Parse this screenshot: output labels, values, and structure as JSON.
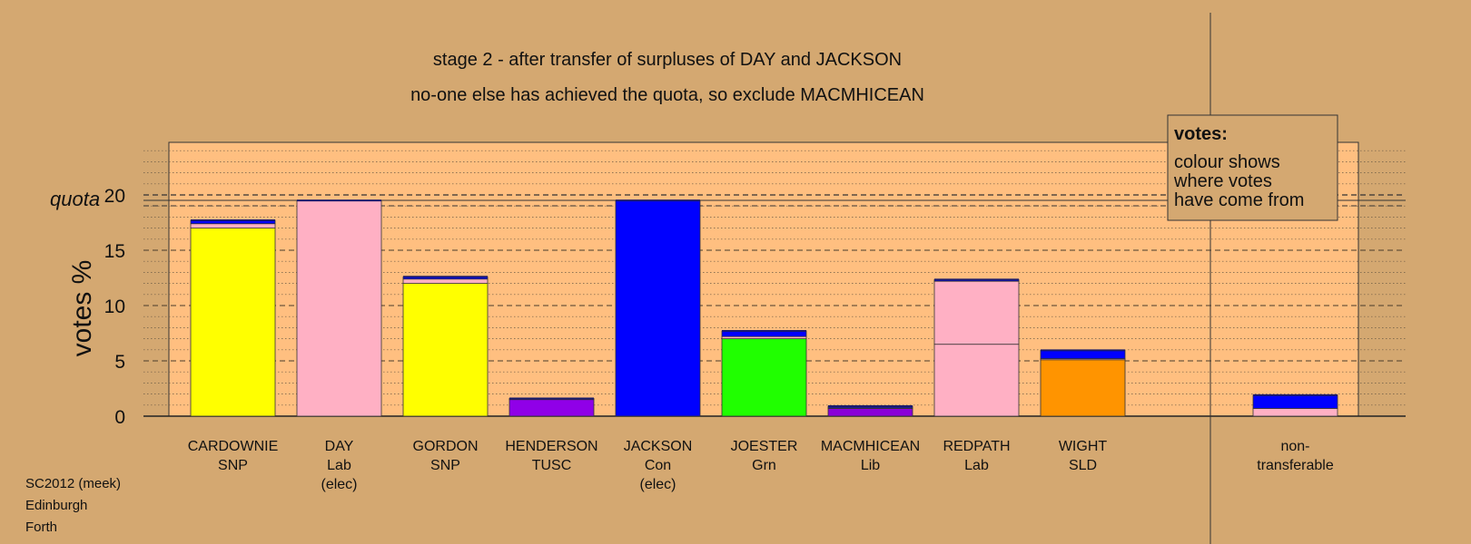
{
  "chart_data": {
    "type": "bar",
    "stacked": true,
    "title": "stage 2 - after transfer of surpluses of DAY and JACKSON",
    "subtitle": "no-one else has achieved the quota, so exclude MACMHICEAN",
    "ylabel": "votes %",
    "quota_label": "quota",
    "quota_value": 20,
    "ylim": [
      0,
      25
    ],
    "yticks": [
      "0",
      "5",
      "10",
      "15",
      "20"
    ],
    "grid": true,
    "legend": {
      "position": "top-right",
      "title": "votes:",
      "lines": [
        "colour shows",
        "where votes",
        "have come from"
      ]
    },
    "colors": {
      "SNP": "#ffff00",
      "Lab": "#ffb0c4",
      "Con": "#0000ff",
      "TUSC": "#9000e8",
      "Grn": "#20ff00",
      "Lib": "#8a00d8",
      "SLD": "#ff9400",
      "Con_transfer": "#0000ff",
      "Lab_transfer": "#ffb0c4",
      "top_line": "#1a1a6e"
    },
    "candidates": [
      {
        "name": "CARDOWNIE",
        "party": "SNP",
        "note": "",
        "segments": [
          {
            "from": "SNP",
            "value": 17.0
          },
          {
            "from": "Lab",
            "value": 0.4
          },
          {
            "from": "Con",
            "value": 0.3
          }
        ]
      },
      {
        "name": "DAY",
        "party": "Lab",
        "note": "(elec)",
        "segments": [
          {
            "from": "Lab",
            "value": 19.5
          }
        ]
      },
      {
        "name": "GORDON",
        "party": "SNP",
        "note": "",
        "segments": [
          {
            "from": "SNP",
            "value": 12.0
          },
          {
            "from": "Lab",
            "value": 0.4
          },
          {
            "from": "Con",
            "value": 0.2
          }
        ]
      },
      {
        "name": "HENDERSON",
        "party": "TUSC",
        "note": "",
        "segments": [
          {
            "from": "TUSC",
            "value": 1.5
          },
          {
            "from": "Lab",
            "value": 0.05
          },
          {
            "from": "Con",
            "value": 0.05
          }
        ]
      },
      {
        "name": "JACKSON",
        "party": "Con",
        "note": "(elec)",
        "segments": [
          {
            "from": "Con",
            "value": 19.5
          }
        ]
      },
      {
        "name": "JOESTER",
        "party": "Grn",
        "note": "",
        "segments": [
          {
            "from": "Grn",
            "value": 7.0
          },
          {
            "from": "Lab",
            "value": 0.2
          },
          {
            "from": "Con",
            "value": 0.5
          }
        ]
      },
      {
        "name": "MACMHICEAN",
        "party": "Lib",
        "note": "",
        "segments": [
          {
            "from": "Lib",
            "value": 0.7
          },
          {
            "from": "Lab",
            "value": 0.05
          },
          {
            "from": "Con",
            "value": 0.15
          }
        ]
      },
      {
        "name": "REDPATH",
        "party": "Lab",
        "note": "",
        "segments": [
          {
            "from": "Lab",
            "value": 6.5
          },
          {
            "from": "Lab_transfer",
            "value": 5.7
          },
          {
            "from": "Con",
            "value": 0.15
          }
        ]
      },
      {
        "name": "WIGHT",
        "party": "SLD",
        "note": "",
        "segments": [
          {
            "from": "SLD",
            "value": 5.1
          },
          {
            "from": "Lab",
            "value": 0.1
          },
          {
            "from": "Con",
            "value": 0.75
          }
        ]
      }
    ],
    "nontransferable": {
      "label_line1": "non-",
      "label_line2": "transferable",
      "segments": [
        {
          "from": "Lab",
          "value": 0.7
        },
        {
          "from": "Con",
          "value": 1.2
        }
      ]
    }
  },
  "footer": {
    "line1": "SC2012 (meek)",
    "line2": "Edinburgh",
    "line3": "Forth"
  }
}
